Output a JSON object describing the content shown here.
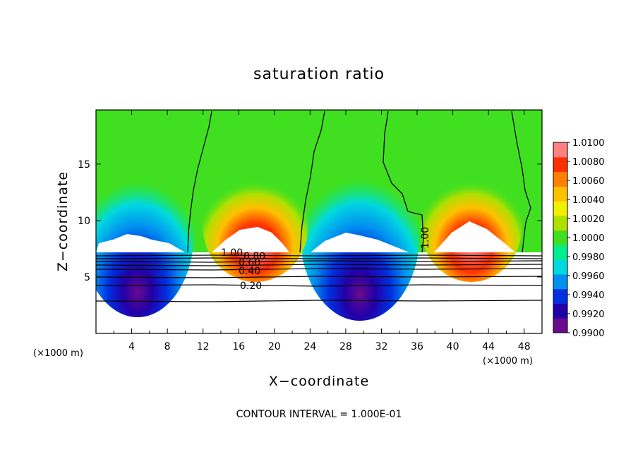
{
  "chart_data": {
    "type": "heatmap",
    "title": "saturation ratio",
    "xlabel": "X−coordinate",
    "ylabel": "Z−coordinate",
    "x_unit": "(×1000 m)",
    "y_unit": "(×1000 m)",
    "x_ticks": [
      "4",
      "8",
      "12",
      "16",
      "20",
      "24",
      "28",
      "32",
      "36",
      "40",
      "44",
      "48"
    ],
    "y_ticks": [
      "5",
      "10",
      "15"
    ],
    "xlim": [
      0,
      50
    ],
    "ylim": [
      0,
      19.8
    ],
    "colorbar": {
      "min": 0.99,
      "max": 1.01,
      "labels": [
        "0.9900",
        "0.9920",
        "0.9940",
        "0.9960",
        "0.9980",
        "1.0000",
        "1.0020",
        "1.0040",
        "1.0060",
        "1.0080",
        "1.0100"
      ],
      "colors": [
        "#6a0a8c",
        "#2200a8",
        "#0030e0",
        "#0090f0",
        "#00d8e0",
        "#00ee90",
        "#40e020",
        "#b0e000",
        "#f0f000",
        "#ffc000",
        "#ff8000",
        "#ff3000",
        "#ff8080"
      ]
    },
    "peaks_x": [
      4.5,
      18,
      28,
      41.5
    ],
    "contour_labels": [
      "1.00",
      "0.80",
      "0.60",
      "0.40",
      "0.20",
      "1.00"
    ],
    "footer": "CONTOUR INTERVAL = 1.000E-01"
  }
}
